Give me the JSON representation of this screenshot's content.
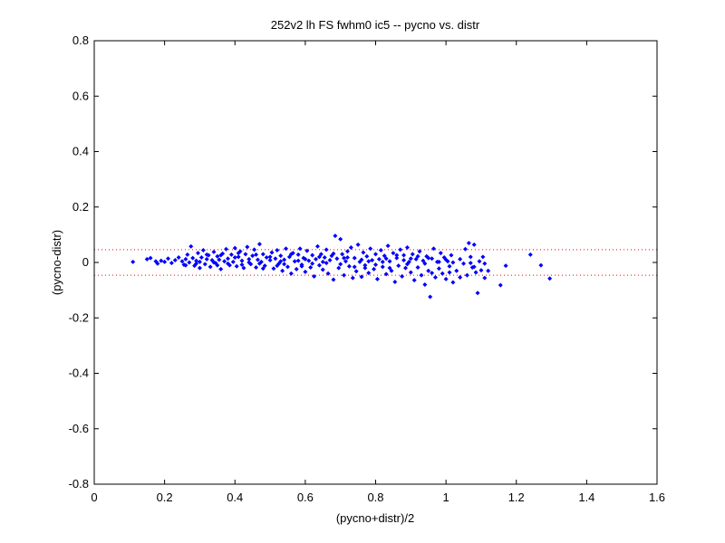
{
  "chart_data": {
    "type": "scatter",
    "title": "252v2 lh FS fwhm0 ic5 -- pycno vs. distr",
    "xlabel": "(pycno+distr)/2",
    "ylabel": "(pycno-distr)",
    "xlim": [
      0,
      1.6
    ],
    "ylim": [
      -0.8,
      0.8
    ],
    "xticks": [
      0,
      0.2,
      0.4,
      0.6,
      0.8,
      1,
      1.2,
      1.4,
      1.6
    ],
    "yticks": [
      -0.8,
      -0.6,
      -0.4,
      -0.2,
      0,
      0.2,
      0.4,
      0.6,
      0.8
    ],
    "xtick_labels": [
      "0",
      "0.2",
      "0.4",
      "0.6",
      "0.8",
      "1",
      "1.2",
      "1.4",
      "1.6"
    ],
    "ytick_labels": [
      "-0.8",
      "-0.6",
      "-0.4",
      "-0.2",
      "0",
      "0.2",
      "0.4",
      "0.6",
      "0.8"
    ],
    "grid": false,
    "reference_lines": [
      0.046,
      -0.046
    ],
    "marker_color": "#0000ff",
    "reference_line_color": "#ff0000",
    "series": [
      {
        "points": [
          [
            0.11,
            0.002
          ],
          [
            0.15,
            0.012
          ],
          [
            0.16,
            0.016
          ],
          [
            0.175,
            0.004
          ],
          [
            0.18,
            -0.004
          ],
          [
            0.19,
            0.006
          ],
          [
            0.2,
            0.002
          ],
          [
            0.21,
            0.014
          ],
          [
            0.22,
            -0.002
          ],
          [
            0.23,
            0.008
          ],
          [
            0.24,
            0.018
          ],
          [
            0.25,
            0.004
          ],
          [
            0.255,
            -0.008
          ],
          [
            0.26,
            0.012
          ],
          [
            0.265,
            0.028
          ],
          [
            0.27,
            0.0
          ],
          [
            0.275,
            0.058
          ],
          [
            0.28,
            0.016
          ],
          [
            0.285,
            -0.012
          ],
          [
            0.29,
            0.006
          ],
          [
            0.295,
            0.034
          ],
          [
            0.3,
            0.002
          ],
          [
            0.305,
            0.018
          ],
          [
            0.31,
            0.044
          ],
          [
            0.315,
            -0.006
          ],
          [
            0.32,
            0.012
          ],
          [
            0.325,
            0.026
          ],
          [
            0.33,
            -0.016
          ],
          [
            0.335,
            0.008
          ],
          [
            0.34,
            0.038
          ],
          [
            0.345,
            -0.002
          ],
          [
            0.35,
            0.022
          ],
          [
            0.355,
            0.01
          ],
          [
            0.36,
            -0.024
          ],
          [
            0.365,
            0.032
          ],
          [
            0.37,
            0.004
          ],
          [
            0.375,
            0.048
          ],
          [
            0.38,
            0.014
          ],
          [
            0.385,
            -0.01
          ],
          [
            0.39,
            0.028
          ],
          [
            0.395,
            0.002
          ],
          [
            0.4,
            0.052
          ],
          [
            0.405,
            -0.014
          ],
          [
            0.41,
            0.02
          ],
          [
            0.415,
            0.04
          ],
          [
            0.42,
            0.006
          ],
          [
            0.425,
            -0.02
          ],
          [
            0.43,
            0.03
          ],
          [
            0.435,
            0.056
          ],
          [
            0.44,
            0.012
          ],
          [
            0.445,
            -0.006
          ],
          [
            0.45,
            0.024
          ],
          [
            0.455,
            0.046
          ],
          [
            0.46,
            -0.018
          ],
          [
            0.465,
            0.01
          ],
          [
            0.47,
            0.066
          ],
          [
            0.475,
            0.002
          ],
          [
            0.48,
            0.03
          ],
          [
            0.485,
            -0.012
          ],
          [
            0.49,
            0.018
          ],
          [
            0.5,
            0.008
          ],
          [
            0.505,
            0.036
          ],
          [
            0.51,
            -0.022
          ],
          [
            0.515,
            0.014
          ],
          [
            0.52,
            0.044
          ],
          [
            0.525,
            -0.004
          ],
          [
            0.53,
            0.024
          ],
          [
            0.535,
            -0.03
          ],
          [
            0.54,
            0.01
          ],
          [
            0.545,
            0.05
          ],
          [
            0.55,
            -0.016
          ],
          [
            0.555,
            0.02
          ],
          [
            0.56,
            -0.04
          ],
          [
            0.565,
            0.034
          ],
          [
            0.57,
            0.004
          ],
          [
            0.575,
            -0.024
          ],
          [
            0.58,
            0.028
          ],
          [
            0.585,
            0.05
          ],
          [
            0.59,
            -0.008
          ],
          [
            0.595,
            0.016
          ],
          [
            0.6,
            -0.034
          ],
          [
            0.605,
            0.042
          ],
          [
            0.61,
            0.006
          ],
          [
            0.615,
            -0.018
          ],
          [
            0.62,
            0.026
          ],
          [
            0.625,
            -0.05
          ],
          [
            0.63,
            0.012
          ],
          [
            0.635,
            0.058
          ],
          [
            0.64,
            -0.01
          ],
          [
            0.645,
            0.03
          ],
          [
            0.65,
            -0.026
          ],
          [
            0.655,
            0.018
          ],
          [
            0.66,
            0.046
          ],
          [
            0.665,
            -0.04
          ],
          [
            0.67,
            0.008
          ],
          [
            0.675,
            0.024
          ],
          [
            0.68,
            -0.062
          ],
          [
            0.685,
            0.096
          ],
          [
            0.69,
            0.014
          ],
          [
            0.695,
            -0.02
          ],
          [
            0.7,
            0.084
          ],
          [
            0.705,
            0.03
          ],
          [
            0.71,
            -0.046
          ],
          [
            0.715,
            0.004
          ],
          [
            0.72,
            0.04
          ],
          [
            0.725,
            -0.014
          ],
          [
            0.73,
            0.054
          ],
          [
            0.735,
            -0.056
          ],
          [
            0.74,
            0.016
          ],
          [
            0.745,
            -0.032
          ],
          [
            0.75,
            0.064
          ],
          [
            0.755,
            0.002
          ],
          [
            0.76,
            -0.052
          ],
          [
            0.765,
            0.036
          ],
          [
            0.77,
            -0.01
          ],
          [
            0.775,
            0.022
          ],
          [
            0.78,
            -0.038
          ],
          [
            0.785,
            0.05
          ],
          [
            0.79,
            0.008
          ],
          [
            0.795,
            -0.024
          ],
          [
            0.8,
            0.03
          ],
          [
            0.805,
            -0.06
          ],
          [
            0.81,
            0.012
          ],
          [
            0.815,
            0.044
          ],
          [
            0.82,
            -0.016
          ],
          [
            0.825,
            0.024
          ],
          [
            0.83,
            -0.042
          ],
          [
            0.835,
            0.06
          ],
          [
            0.84,
            0.004
          ],
          [
            0.845,
            -0.03
          ],
          [
            0.85,
            0.034
          ],
          [
            0.855,
            -0.07
          ],
          [
            0.86,
            0.016
          ],
          [
            0.865,
            -0.012
          ],
          [
            0.87,
            0.046
          ],
          [
            0.875,
            -0.05
          ],
          [
            0.88,
            0.026
          ],
          [
            0.885,
            -0.02
          ],
          [
            0.89,
            0.054
          ],
          [
            0.895,
            0.002
          ],
          [
            0.9,
            -0.036
          ],
          [
            0.905,
            0.03
          ],
          [
            0.91,
            -0.064
          ],
          [
            0.915,
            0.012
          ],
          [
            0.92,
            -0.018
          ],
          [
            0.925,
            0.04
          ],
          [
            0.93,
            -0.046
          ],
          [
            0.935,
            0.006
          ],
          [
            0.94,
            -0.08
          ],
          [
            0.945,
            0.022
          ],
          [
            0.95,
            -0.03
          ],
          [
            0.955,
            -0.124
          ],
          [
            0.96,
            0.014
          ],
          [
            0.965,
            0.05
          ],
          [
            0.97,
            -0.054
          ],
          [
            0.975,
            0.002
          ],
          [
            0.98,
            -0.022
          ],
          [
            0.985,
            0.034
          ],
          [
            0.99,
            -0.04
          ],
          [
            0.995,
            0.018
          ],
          [
            1.0,
            -0.06
          ],
          [
            1.005,
            0.004
          ],
          [
            1.01,
            -0.014
          ],
          [
            1.015,
            0.026
          ],
          [
            1.02,
            -0.072
          ],
          [
            1.03,
            -0.03
          ],
          [
            1.04,
            0.012
          ],
          [
            1.05,
            -0.004
          ],
          [
            1.055,
            0.048
          ],
          [
            1.06,
            -0.046
          ],
          [
            1.065,
            0.07
          ],
          [
            1.07,
            0.02
          ],
          [
            1.075,
            -0.018
          ],
          [
            1.08,
            0.064
          ],
          [
            1.085,
            -0.036
          ],
          [
            1.09,
            -0.11
          ],
          [
            1.095,
            0.004
          ],
          [
            1.1,
            -0.028
          ],
          [
            1.105,
            0.02
          ],
          [
            1.11,
            -0.056
          ],
          [
            1.12,
            -0.03
          ],
          [
            1.155,
            -0.082
          ],
          [
            1.17,
            -0.012
          ],
          [
            1.24,
            0.028
          ],
          [
            1.27,
            -0.01
          ],
          [
            1.295,
            -0.058
          ],
          [
            0.3,
            -0.02
          ],
          [
            0.36,
            0.026
          ],
          [
            0.42,
            -0.008
          ],
          [
            0.46,
            0.028
          ],
          [
            0.52,
            -0.012
          ],
          [
            0.58,
            0.006
          ],
          [
            0.64,
            0.02
          ],
          [
            0.7,
            -0.006
          ],
          [
            0.76,
            0.01
          ],
          [
            0.82,
            0.002
          ],
          [
            0.88,
            0.008
          ],
          [
            0.94,
            -0.004
          ],
          [
            1.0,
            0.01
          ],
          [
            0.34,
            0.0
          ],
          [
            0.4,
            0.018
          ],
          [
            0.48,
            -0.022
          ],
          [
            0.56,
            0.03
          ],
          [
            0.62,
            -0.004
          ],
          [
            0.68,
            0.032
          ],
          [
            0.74,
            -0.016
          ],
          [
            0.8,
            -0.008
          ],
          [
            0.86,
            0.026
          ],
          [
            0.92,
            0.022
          ],
          [
            0.98,
            0.002
          ],
          [
            1.04,
            -0.054
          ],
          [
            0.26,
            -0.01
          ],
          [
            0.32,
            0.028
          ],
          [
            0.38,
            -0.004
          ],
          [
            0.44,
            0.0
          ],
          [
            0.5,
            0.02
          ],
          [
            0.54,
            -0.006
          ],
          [
            0.6,
            0.012
          ],
          [
            0.66,
            -0.002
          ],
          [
            0.72,
            0.018
          ],
          [
            0.78,
            0.004
          ],
          [
            0.84,
            -0.02
          ],
          [
            0.9,
            0.014
          ],
          [
            0.96,
            -0.038
          ],
          [
            1.02,
            0.0
          ],
          [
            1.08,
            -0.016
          ],
          [
            0.29,
            -0.004
          ],
          [
            0.35,
            -0.01
          ],
          [
            0.41,
            0.034
          ],
          [
            0.47,
            -0.004
          ],
          [
            0.53,
            0.004
          ],
          [
            0.59,
            -0.014
          ],
          [
            0.65,
            0.002
          ],
          [
            0.71,
            0.016
          ],
          [
            0.77,
            -0.02
          ],
          [
            0.83,
            0.014
          ],
          [
            0.89,
            -0.006
          ],
          [
            0.95,
            0.016
          ],
          [
            1.01,
            -0.036
          ],
          [
            1.07,
            -0.002
          ],
          [
            1.11,
            -0.004
          ]
        ]
      }
    ]
  }
}
